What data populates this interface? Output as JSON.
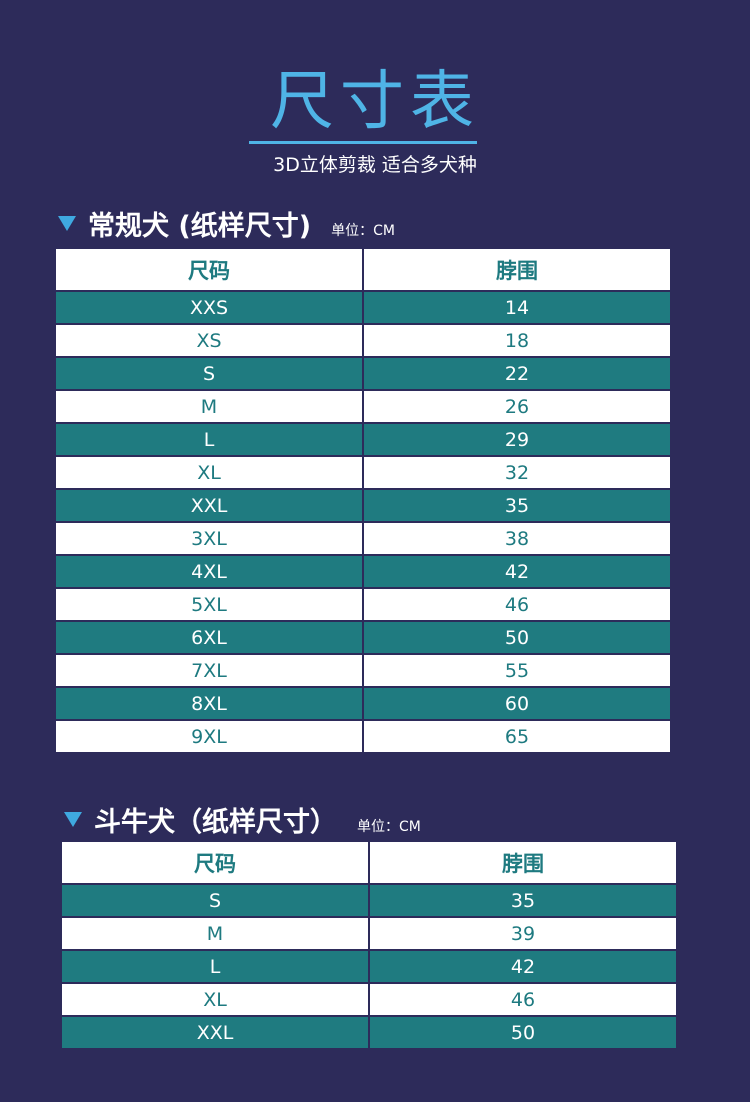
{
  "header": {
    "title": "尺寸表",
    "subtitle": "3D立体剪裁  适合多犬种"
  },
  "sections": [
    {
      "title": "常规犬 (纸样尺寸)",
      "unit": "单位：CM",
      "columns": [
        "尺码",
        "脖围"
      ],
      "rows": [
        [
          "XXS",
          "14"
        ],
        [
          "XS",
          "18"
        ],
        [
          "S",
          "22"
        ],
        [
          "M",
          "26"
        ],
        [
          "L",
          "29"
        ],
        [
          "XL",
          "32"
        ],
        [
          "XXL",
          "35"
        ],
        [
          "3XL",
          "38"
        ],
        [
          "4XL",
          "42"
        ],
        [
          "5XL",
          "46"
        ],
        [
          "6XL",
          "50"
        ],
        [
          "7XL",
          "55"
        ],
        [
          "8XL",
          "60"
        ],
        [
          "9XL",
          "65"
        ]
      ]
    },
    {
      "title": "斗牛犬（纸样尺寸）",
      "unit": "单位：CM",
      "columns": [
        "尺码",
        "脖围"
      ],
      "rows": [
        [
          "S",
          "35"
        ],
        [
          "M",
          "39"
        ],
        [
          "L",
          "42"
        ],
        [
          "XL",
          "46"
        ],
        [
          "XXL",
          "50"
        ]
      ]
    }
  ],
  "colors": {
    "background": "#2d2b5a",
    "accent": "#4fb4e6",
    "teal": "#1f7b80"
  }
}
